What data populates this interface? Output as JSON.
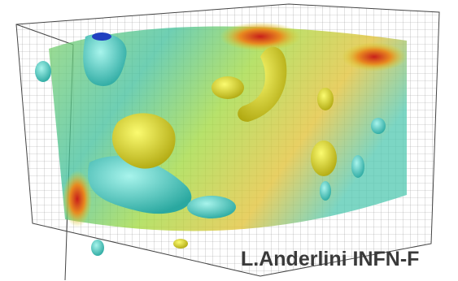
{
  "caption": "L.Anderlini INFN-F"
}
